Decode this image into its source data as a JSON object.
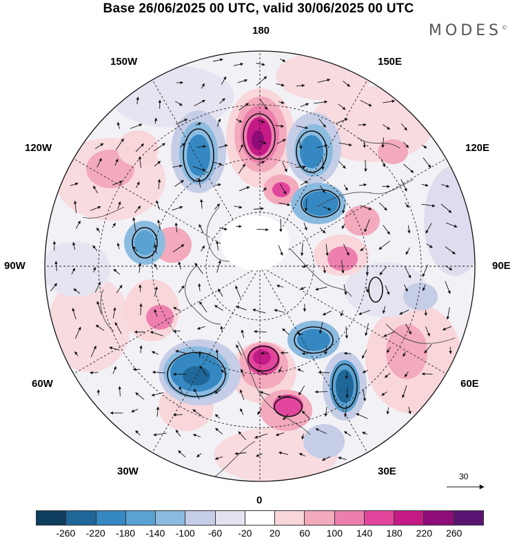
{
  "title": "Base 26/06/2025 00 UTC, valid 30/06/2025 00 UTC",
  "brand": "MODES",
  "brand_mark": "©",
  "longitude_labels": {
    "top": "180",
    "top_left": "150W",
    "top_right": "150E",
    "upper_left": "120W",
    "upper_right": "120E",
    "left": "90W",
    "right": "90E",
    "lower_left": "60W",
    "lower_right": "60E",
    "bottom_left": "30W",
    "bottom_right": "30E",
    "bottom": "0"
  },
  "vector_scale": {
    "label": "30",
    "icon": "arrow-right-icon"
  },
  "colorbar": {
    "colors": [
      "#0e3d5e",
      "#1f6798",
      "#3588c2",
      "#5aa2d2",
      "#8cbbe0",
      "#c6cde6",
      "#e4e1f0",
      "#ffffff",
      "#f8d6da",
      "#f3aabd",
      "#ec7fae",
      "#e2469c",
      "#c41a86",
      "#8f0c79",
      "#581470"
    ],
    "tick_labels": [
      "-260",
      "-220",
      "-180",
      "-140",
      "-100",
      "-60",
      "-20",
      "20",
      "60",
      "100",
      "140",
      "180",
      "220",
      "260"
    ]
  }
}
